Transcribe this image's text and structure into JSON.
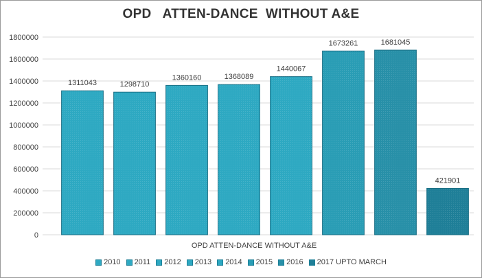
{
  "chart_data": {
    "type": "bar",
    "title": "OPD   ATTEN-DANCE  WITHOUT A&E",
    "xlabel": "OPD   ATTEN-DANCE WITHOUT A&E",
    "ylabel": "",
    "ylim": [
      0,
      1800000
    ],
    "yticks": [
      0,
      200000,
      400000,
      600000,
      800000,
      1000000,
      1200000,
      1400000,
      1600000,
      1800000
    ],
    "grid": true,
    "legend_position": "bottom",
    "series": [
      {
        "name": "2010",
        "value": 1311043,
        "label": "1311043",
        "color": "#2ea9c2"
      },
      {
        "name": "2011",
        "value": 1298710,
        "label": "1298710",
        "color": "#2ea9c2"
      },
      {
        "name": "2012",
        "value": 1360160,
        "label": "1360160",
        "color": "#2ea9c2"
      },
      {
        "name": "2013",
        "value": 1368089,
        "label": "1368089",
        "color": "#2ea9c2"
      },
      {
        "name": "2014",
        "value": 1440067,
        "label": "1440067",
        "color": "#2ea9c2"
      },
      {
        "name": "2015",
        "value": 1673261,
        "label": "1673261",
        "color": "#2a9db5"
      },
      {
        "name": "2016",
        "value": 1681045,
        "label": "1681045",
        "color": "#2890a8"
      },
      {
        "name": "2017 UPTO MARCH",
        "value": 421901,
        "label": "421901",
        "color": "#1f7f98"
      }
    ]
  }
}
